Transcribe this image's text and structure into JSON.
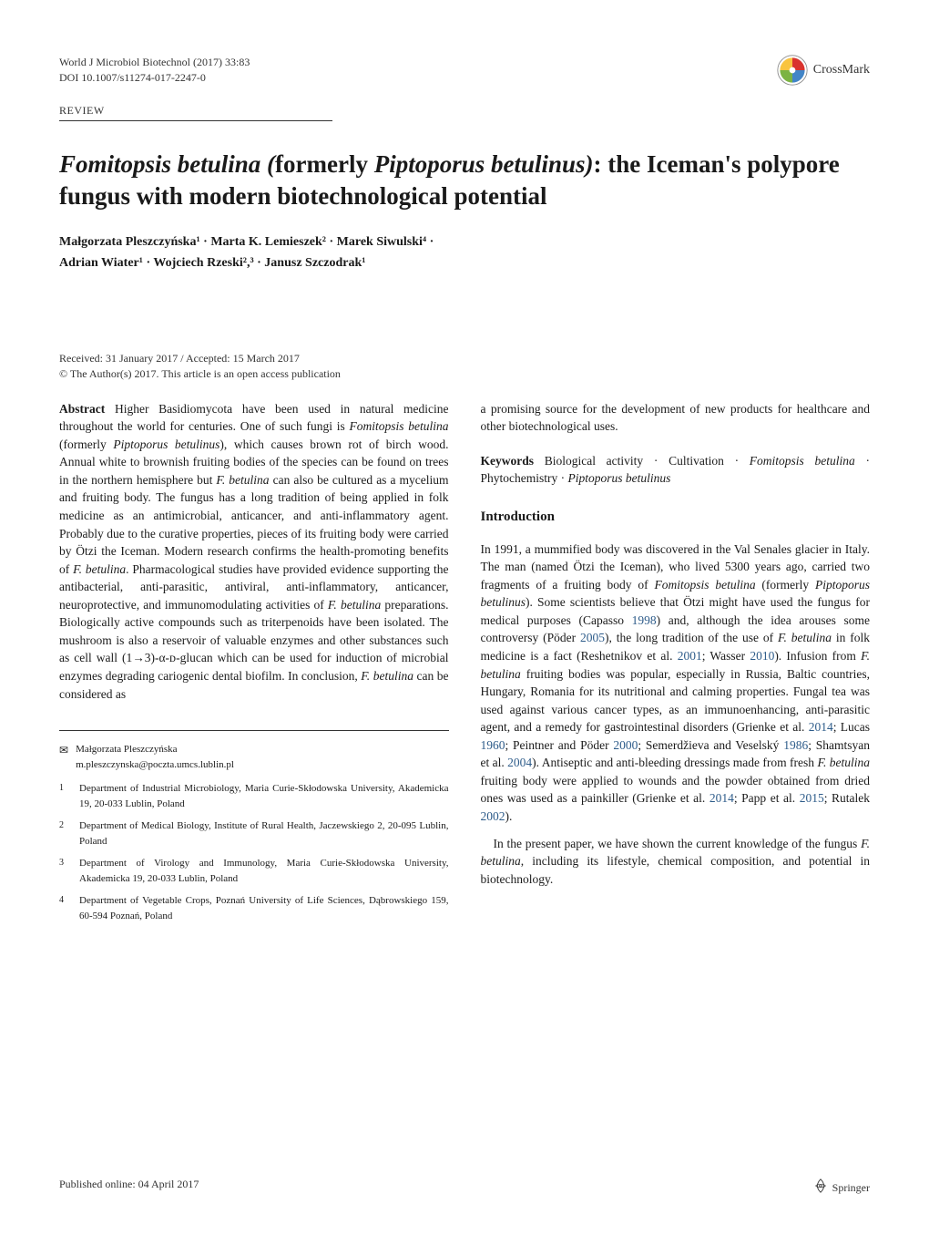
{
  "header": {
    "journal_line1": "World J Microbiol Biotechnol (2017) 33:83",
    "journal_line2": "DOI 10.1007/s11274-017-2247-0",
    "crossmark_label": "CrossMark",
    "crossmark_colors": {
      "red": "#d9332e",
      "yellow": "#f9c440",
      "green": "#7cb342",
      "blue": "#4285c7"
    }
  },
  "review_label": "REVIEW",
  "title": {
    "part1_italic": "Fomitopsis betulina (",
    "part2": "formerly ",
    "part3_italic": "Piptoporus betulinus)",
    "part4": ": the Iceman's polypore fungus with modern biotechnological potential"
  },
  "authors": {
    "line1": "Małgorzata Pleszczyńska¹ · Marta K. Lemieszek² · Marek Siwulski⁴ ·",
    "line2": "Adrian Wiater¹ · Wojciech Rzeski²,³ · Janusz Szczodrak¹"
  },
  "dates": {
    "line1": "Received: 31 January 2017 / Accepted: 15 March 2017",
    "line2": "© The Author(s) 2017. This article is an open access publication"
  },
  "abstract": {
    "label": "Abstract",
    "text_parts": [
      {
        "t": "  Higher Basidiomycota have been used in natural medicine throughout the world for centuries. One of such fungi is "
      },
      {
        "t": "Fomitopsis betulina",
        "i": true
      },
      {
        "t": " (formerly "
      },
      {
        "t": "Piptoporus betulinus",
        "i": true
      },
      {
        "t": "), which causes brown rot of birch wood. Annual white to brownish fruiting bodies of the species can be found on trees in the northern hemisphere but "
      },
      {
        "t": "F. betulina",
        "i": true
      },
      {
        "t": " can also be cultured as a mycelium and fruiting body. The fungus has a long tradition of being applied in folk medicine as an antimicrobial, anticancer, and anti-inflammatory agent. Probably due to the curative properties, pieces of its fruiting body were carried by Ötzi the Iceman. Modern research confirms the health-promoting benefits of "
      },
      {
        "t": "F. betulina",
        "i": true
      },
      {
        "t": ". Pharmacological studies have provided evidence supporting the antibacterial, anti-parasitic, antiviral, anti-inflammatory, anticancer, neuroprotective, and immunomodulating activities of "
      },
      {
        "t": "F. betulina",
        "i": true
      },
      {
        "t": " preparations. Biologically active compounds such as triterpenoids have been isolated. The mushroom is also a reservoir of valuable enzymes and other substances such as cell wall (1→3)-α-ᴅ-glucan which can be used for induction of microbial enzymes degrading cariogenic dental biofilm. In conclusion, "
      },
      {
        "t": "F. betulina",
        "i": true
      },
      {
        "t": " can be considered as"
      }
    ]
  },
  "right_col": {
    "continuation": "a promising source for the development of new products for healthcare and other biotechnological uses.",
    "keywords_label": "Keywords",
    "keywords_parts": [
      {
        "t": "  Biological activity · Cultivation · "
      },
      {
        "t": "Fomitopsis betulina",
        "i": true
      },
      {
        "t": " · Phytochemistry · "
      },
      {
        "t": "Piptoporus betulinus",
        "i": true
      }
    ],
    "intro_heading": "Introduction",
    "intro_parts": [
      {
        "t": "In 1991, a mummified body was discovered in the Val Senales glacier in Italy. The man (named Ötzi the Iceman), who lived 5300 years ago, carried two fragments of a fruiting body of "
      },
      {
        "t": "Fomitopsis betulina",
        "i": true
      },
      {
        "t": " (formerly "
      },
      {
        "t": "Piptoporus betulinus",
        "i": true
      },
      {
        "t": "). Some scientists believe that Ötzi might have used the fungus for medical purposes (Capasso "
      },
      {
        "t": "1998",
        "ref": true
      },
      {
        "t": ") and, although the idea arouses some controversy (Pöder "
      },
      {
        "t": "2005",
        "ref": true
      },
      {
        "t": "), the long tradition of the use of "
      },
      {
        "t": "F. betulina",
        "i": true
      },
      {
        "t": " in folk medicine is a fact (Reshetnikov et al. "
      },
      {
        "t": "2001",
        "ref": true
      },
      {
        "t": "; Wasser "
      },
      {
        "t": "2010",
        "ref": true
      },
      {
        "t": "). Infusion from "
      },
      {
        "t": "F. betulina",
        "i": true
      },
      {
        "t": " fruiting bodies was popular, especially in Russia, Baltic countries, Hungary, Romania for its nutritional and calming properties. Fungal tea was used against various cancer types, as an immunoenhancing, anti-parasitic agent, and a remedy for gastrointestinal disorders (Grienke et al. "
      },
      {
        "t": "2014",
        "ref": true
      },
      {
        "t": "; Lucas "
      },
      {
        "t": "1960",
        "ref": true
      },
      {
        "t": "; Peintner and Pöder "
      },
      {
        "t": "2000",
        "ref": true
      },
      {
        "t": "; Semerdžieva and Veselský "
      },
      {
        "t": "1986",
        "ref": true
      },
      {
        "t": "; Shamtsyan et al. "
      },
      {
        "t": "2004",
        "ref": true
      },
      {
        "t": "). Antiseptic and anti-bleeding dressings made from fresh "
      },
      {
        "t": "F. betulina",
        "i": true
      },
      {
        "t": " fruiting body were applied to wounds and the powder obtained from dried ones was used as a painkiller (Grienke et al. "
      },
      {
        "t": "2014",
        "ref": true
      },
      {
        "t": "; Papp et al. "
      },
      {
        "t": "2015",
        "ref": true
      },
      {
        "t": "; Rutalek "
      },
      {
        "t": "2002",
        "ref": true
      },
      {
        "t": ")."
      }
    ],
    "intro_p2_parts": [
      {
        "t": "In the present paper, we have shown the current knowledge of the fungus "
      },
      {
        "t": "F. betulina",
        "i": true
      },
      {
        "t": ", including its lifestyle, chemical composition, and potential in biotechnology."
      }
    ]
  },
  "correspondence": {
    "name": "Małgorzata Pleszczyńska",
    "email": "m.pleszczynska@poczta.umcs.lublin.pl"
  },
  "affiliations": [
    {
      "num": "1",
      "text": "Department of Industrial Microbiology, Maria Curie-Skłodowska University, Akademicka 19, 20-033 Lublin, Poland"
    },
    {
      "num": "2",
      "text": "Department of Medical Biology, Institute of Rural Health, Jaczewskiego 2, 20-095 Lublin, Poland"
    },
    {
      "num": "3",
      "text": "Department of Virology and Immunology, Maria Curie-Skłodowska University, Akademicka 19, 20-033 Lublin, Poland"
    },
    {
      "num": "4",
      "text": "Department of Vegetable Crops, Poznań University of Life Sciences, Dąbrowskiego 159, 60-594 Poznań, Poland"
    }
  ],
  "footer": {
    "pub_date": "Published online: 04 April 2017",
    "springer": "Springer"
  }
}
